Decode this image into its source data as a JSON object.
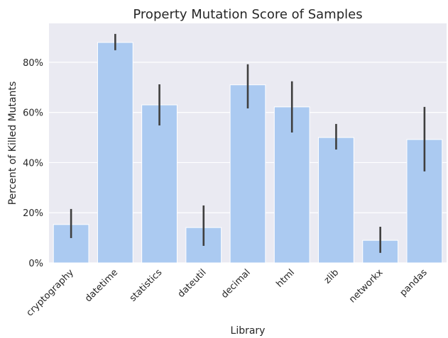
{
  "chart_data": {
    "type": "bar",
    "title": "Property Mutation Score of Samples",
    "x_label": "Library",
    "y_label": "Percent of Killed Mutants",
    "categories": [
      "cryptography",
      "datetime",
      "statistics",
      "dateutil",
      "decimal",
      "html",
      "zlib",
      "networkx",
      "pandas"
    ],
    "values": [
      15.3,
      87.9,
      63.0,
      14.1,
      71.0,
      62.2,
      50.0,
      9.0,
      49.2
    ],
    "ci_low": [
      9.9,
      84.8,
      54.8,
      6.8,
      61.6,
      52.0,
      45.2,
      4.0,
      36.5
    ],
    "ci_high": [
      21.5,
      91.3,
      71.2,
      22.9,
      79.2,
      72.4,
      55.4,
      14.4,
      62.2
    ],
    "color": "#abcaf1",
    "error_color": "#3f3f3f",
    "ylim": [
      0,
      95.5
    ],
    "yticks": [
      {
        "value": 0,
        "label": "0%"
      },
      {
        "value": 20,
        "label": "20%"
      },
      {
        "value": 40,
        "label": "40%"
      },
      {
        "value": 60,
        "label": "60%"
      },
      {
        "value": 80,
        "label": "80%"
      }
    ],
    "grid": true
  }
}
